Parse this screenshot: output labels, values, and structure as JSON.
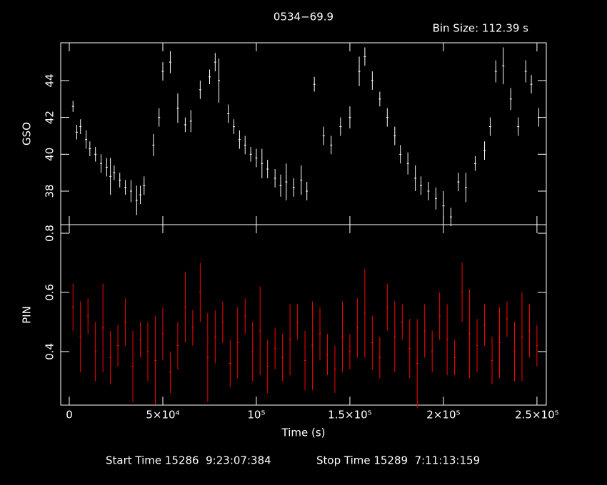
{
  "header": {
    "title": "0534−69.9",
    "bin_size": "Bin Size: 112.39 s"
  },
  "footer": {
    "start": "Start Time 15286  9:23:07:384",
    "stop": "Stop Time 15289  7:11:13:159"
  },
  "chart_data": [
    {
      "type": "errorbar",
      "ylabel": "GSO",
      "color": "#ffffff",
      "xlim": [
        -4580,
        255000
      ],
      "ylim": [
        36.18,
        46.05
      ],
      "yticks": [
        38,
        40,
        42,
        44
      ],
      "x": [
        2000,
        4000,
        6000,
        9000,
        11000,
        14000,
        17000,
        20000,
        22000,
        24000,
        27000,
        30000,
        33000,
        36000,
        38000,
        40000,
        45000,
        48000,
        50000,
        54000,
        58000,
        62000,
        65000,
        70000,
        75000,
        78000,
        80000,
        85000,
        88000,
        91000,
        94000,
        97000,
        100000,
        103000,
        106000,
        110000,
        113000,
        116000,
        120000,
        124000,
        127000,
        131000,
        136000,
        140000,
        145000,
        150000,
        155000,
        158000,
        162000,
        166000,
        170000,
        174000,
        177000,
        181000,
        185000,
        188000,
        192000,
        196000,
        200000,
        204000,
        208000,
        212000,
        217000,
        222000,
        225000,
        228000,
        232000,
        236000,
        240000,
        244000,
        247000,
        251000
      ],
      "values": [
        42.6,
        41.2,
        41.5,
        40.8,
        40.3,
        40.0,
        39.5,
        39.3,
        38.8,
        39.0,
        38.6,
        38.2,
        38.0,
        37.5,
        37.8,
        38.3,
        40.5,
        42.0,
        44.5,
        45.0,
        42.5,
        41.6,
        41.8,
        43.5,
        44.2,
        45.0,
        44.0,
        42.2,
        41.5,
        40.8,
        40.5,
        40.0,
        39.8,
        39.5,
        39.2,
        38.7,
        38.3,
        38.5,
        38.2,
        38.6,
        38.0,
        43.8,
        41.0,
        40.5,
        41.5,
        42.0,
        44.5,
        45.3,
        44.0,
        43.0,
        42.0,
        41.0,
        40.0,
        39.5,
        38.7,
        38.3,
        38.0,
        37.6,
        37.2,
        36.6,
        38.5,
        38.2,
        39.5,
        40.2,
        41.5,
        44.5,
        44.8,
        43.0,
        41.5,
        44.5,
        43.8,
        42.0
      ],
      "errors": [
        0.3,
        0.4,
        0.4,
        0.5,
        0.4,
        0.4,
        0.5,
        0.5,
        1.0,
        0.4,
        0.4,
        0.4,
        0.6,
        0.8,
        0.5,
        0.5,
        0.6,
        0.5,
        0.5,
        0.6,
        0.8,
        0.4,
        0.6,
        0.5,
        0.4,
        0.5,
        1.2,
        0.5,
        0.4,
        0.5,
        0.5,
        0.4,
        0.5,
        0.8,
        0.5,
        0.5,
        0.6,
        1.0,
        0.5,
        0.8,
        0.5,
        0.4,
        0.5,
        0.5,
        0.5,
        0.6,
        0.8,
        0.5,
        0.5,
        0.4,
        0.5,
        0.5,
        0.5,
        0.6,
        0.7,
        0.5,
        0.5,
        0.6,
        0.8,
        0.5,
        0.5,
        0.8,
        0.4,
        0.5,
        0.5,
        0.6,
        1.0,
        0.6,
        0.5,
        0.6,
        0.5,
        0.5
      ]
    },
    {
      "type": "errorbar",
      "ylabel": "PIN",
      "xlabel": "Time (s)",
      "color": "#ff0000",
      "xlim": [
        -4580,
        255000
      ],
      "ylim": [
        0.219,
        0.829
      ],
      "yticks": [
        0.4,
        0.6,
        0.8
      ],
      "xticks": [
        0,
        {
          "value": 50000,
          "label": "5×10⁴"
        },
        {
          "value": 100000,
          "label": "10⁵"
        },
        {
          "value": 150000,
          "label": "1.5×10⁵"
        },
        {
          "value": 200000,
          "label": "2×10⁵"
        },
        {
          "value": 250000,
          "label": "2.5×10⁵"
        }
      ],
      "x": [
        2000,
        6000,
        10000,
        14000,
        18000,
        22000,
        26000,
        30000,
        34000,
        38000,
        42000,
        46000,
        50000,
        54000,
        58000,
        62000,
        66000,
        70000,
        74000,
        78000,
        82000,
        86000,
        90000,
        94000,
        98000,
        102000,
        106000,
        110000,
        114000,
        118000,
        122000,
        126000,
        130000,
        134000,
        138000,
        142000,
        146000,
        150000,
        154000,
        158000,
        162000,
        166000,
        170000,
        174000,
        178000,
        182000,
        186000,
        190000,
        194000,
        198000,
        202000,
        206000,
        210000,
        214000,
        218000,
        222000,
        226000,
        230000,
        234000,
        238000,
        242000,
        246000,
        250000
      ],
      "values": [
        0.55,
        0.45,
        0.52,
        0.4,
        0.48,
        0.38,
        0.42,
        0.5,
        0.35,
        0.44,
        0.4,
        0.37,
        0.46,
        0.33,
        0.42,
        0.55,
        0.48,
        0.6,
        0.38,
        0.45,
        0.5,
        0.36,
        0.43,
        0.52,
        0.4,
        0.47,
        0.35,
        0.41,
        0.38,
        0.44,
        0.5,
        0.37,
        0.42,
        0.46,
        0.39,
        0.34,
        0.45,
        0.4,
        0.48,
        0.53,
        0.43,
        0.38,
        0.55,
        0.45,
        0.5,
        0.41,
        0.36,
        0.47,
        0.4,
        0.52,
        0.44,
        0.38,
        0.6,
        0.46,
        0.42,
        0.49,
        0.37,
        0.43,
        0.51,
        0.4,
        0.45,
        0.47,
        0.42
      ],
      "errors": [
        0.08,
        0.12,
        0.06,
        0.1,
        0.15,
        0.09,
        0.07,
        0.08,
        0.12,
        0.06,
        0.1,
        0.15,
        0.09,
        0.07,
        0.08,
        0.12,
        0.06,
        0.1,
        0.15,
        0.09,
        0.07,
        0.08,
        0.12,
        0.06,
        0.1,
        0.15,
        0.09,
        0.07,
        0.08,
        0.12,
        0.06,
        0.1,
        0.15,
        0.09,
        0.07,
        0.08,
        0.12,
        0.06,
        0.1,
        0.15,
        0.09,
        0.07,
        0.08,
        0.12,
        0.06,
        0.1,
        0.15,
        0.09,
        0.07,
        0.08,
        0.12,
        0.06,
        0.1,
        0.15,
        0.09,
        0.07,
        0.08,
        0.12,
        0.06,
        0.1,
        0.15,
        0.09,
        0.07
      ]
    }
  ]
}
